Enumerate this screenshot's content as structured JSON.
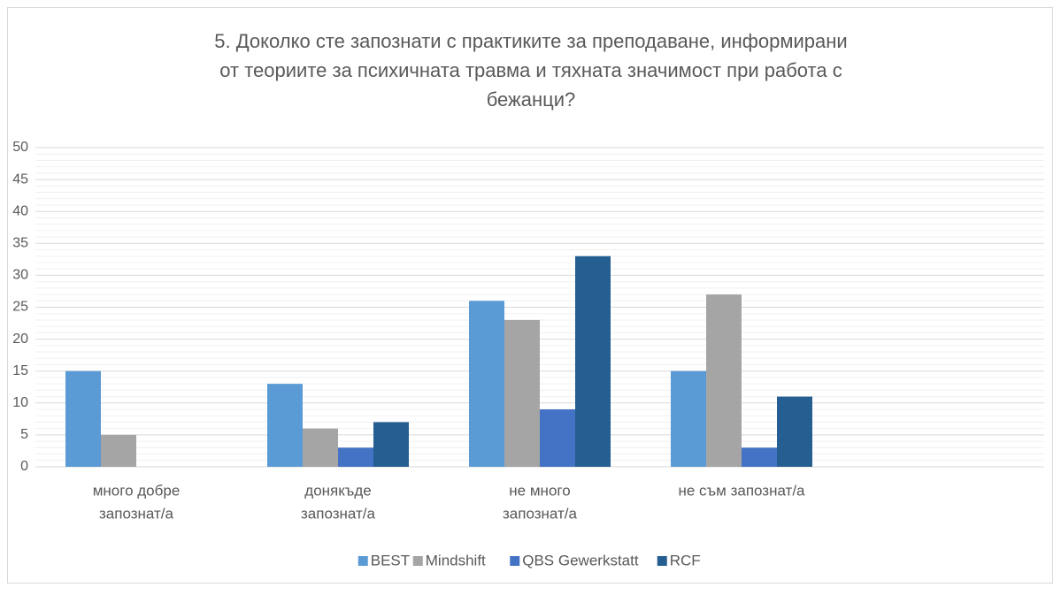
{
  "chart_data": {
    "type": "bar",
    "title": [
      "5. Доколко сте запознати с практиките за преподаване, информирани",
      "от теориите за психичната травма и тяхната значимост при работа с",
      "бежанци?"
    ],
    "categories": [
      [
        "много добре",
        "запознат/а"
      ],
      [
        "донякъде",
        "запознат/а"
      ],
      [
        "не много",
        "запознат/а"
      ],
      [
        "не съм запознат/а"
      ],
      null
    ],
    "series": [
      {
        "name": "BEST",
        "color": "#5b9bd5",
        "values": [
          15,
          13,
          26,
          15,
          null
        ]
      },
      {
        "name": "Mindshift",
        "color": "#a5a5a5",
        "values": [
          5,
          6,
          23,
          27,
          null
        ]
      },
      {
        "name": "QBS Gewerkstatt",
        "color": "#4472c4",
        "values": [
          0,
          3,
          9,
          3,
          null
        ]
      },
      {
        "name": "RCF",
        "color": "#255e91",
        "values": [
          0,
          7,
          33,
          11,
          null
        ]
      }
    ],
    "ylim": [
      0,
      50
    ],
    "yticks": [
      0,
      5,
      10,
      15,
      20,
      25,
      30,
      35,
      40,
      45,
      50
    ],
    "grid": true,
    "legend": "bottom"
  }
}
